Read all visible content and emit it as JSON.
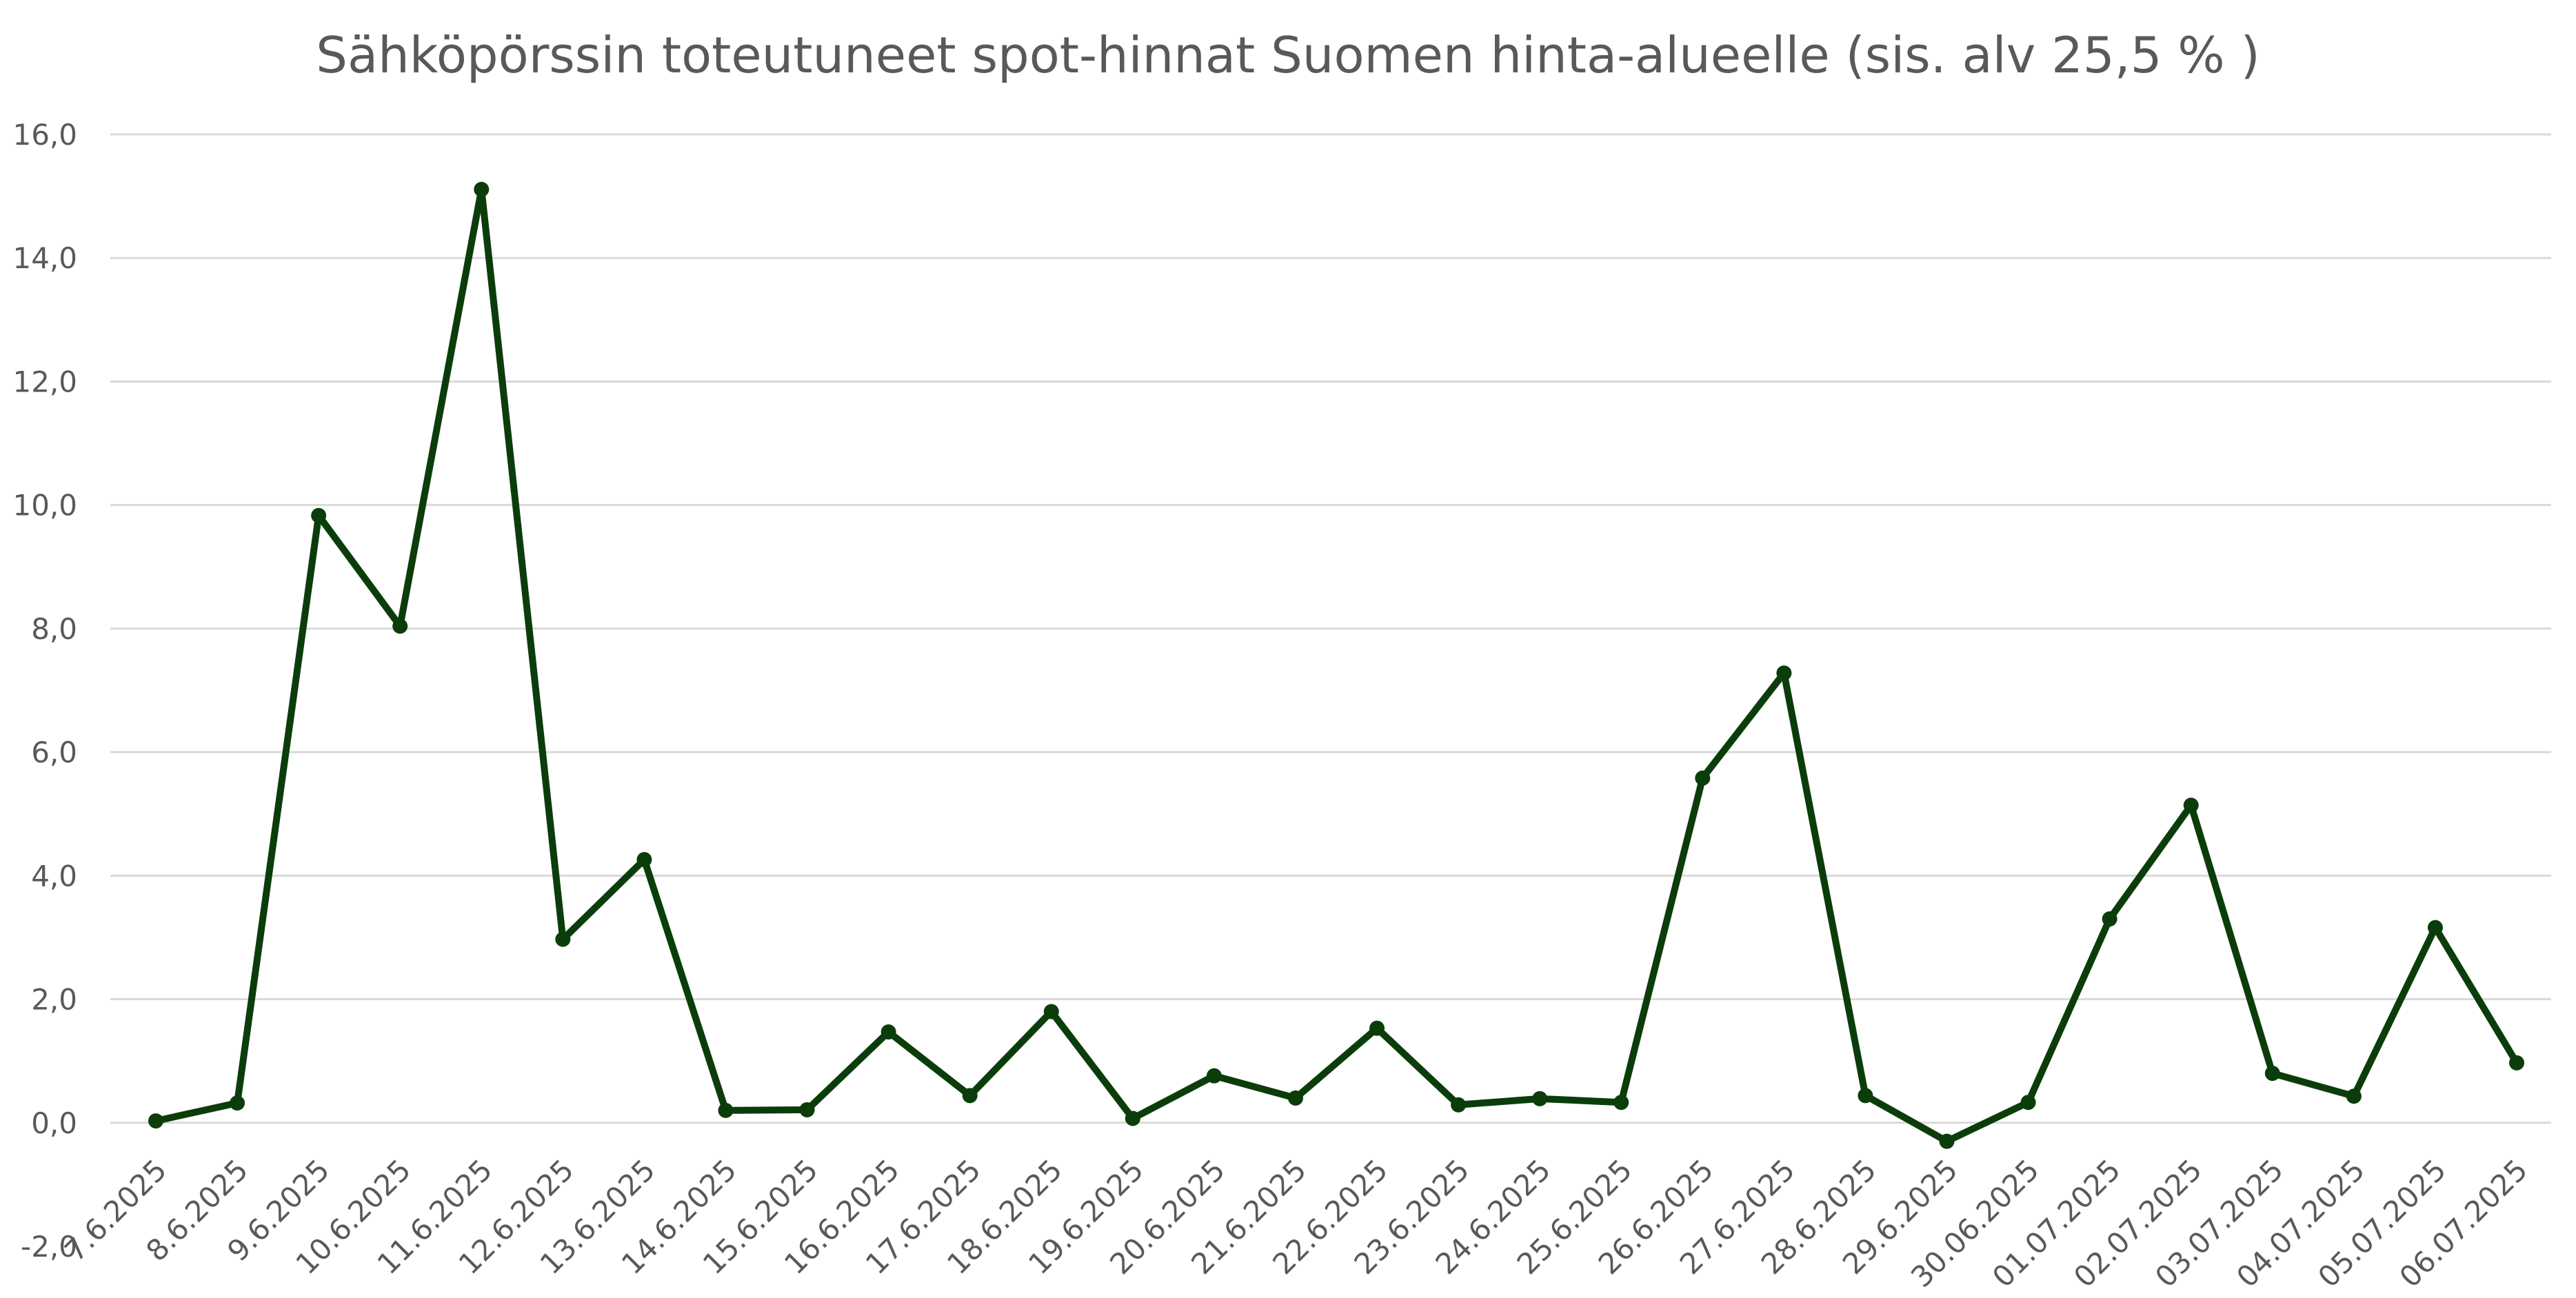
{
  "chart_data": {
    "type": "line",
    "title": "Sähköpörssin toteutuneet spot-hinnat Suomen hinta-alueelle (sis. alv 25,5 % )",
    "xlabel": "",
    "ylabel": "",
    "ylim": [
      -2.0,
      16.0
    ],
    "yticks": [
      "-2,0",
      "0,0",
      "2,0",
      "4,0",
      "6,0",
      "8,0",
      "10,0",
      "12,0",
      "14,0",
      "16,0"
    ],
    "grid": true,
    "legend": "none",
    "line_color": "#0b3d0b",
    "categories": [
      "7.6.2025",
      "8.6.2025",
      "9.6.2025",
      "10.6.2025",
      "11.6.2025",
      "12.6.2025",
      "13.6.2025",
      "14.6.2025",
      "15.6.2025",
      "16.6.2025",
      "17.6.2025",
      "18.6.2025",
      "19.6.2025",
      "20.6.2025",
      "21.6.2025",
      "22.6.2025",
      "23.6.2025",
      "24.6.2025",
      "25.6.2025",
      "26.6.2025",
      "27.6.2025",
      "28.6.2025",
      "29.6.2025",
      "30.06.2025",
      "01.07.2025",
      "02.07.2025",
      "03.07.2025",
      "04.07.2025",
      "05.07.2025",
      "06.07.2025"
    ],
    "series": [
      {
        "values": [
          0.03,
          0.32,
          9.83,
          8.04,
          15.11,
          2.97,
          4.26,
          0.2,
          0.21,
          1.47,
          0.44,
          1.8,
          0.07,
          0.76,
          0.4,
          1.53,
          0.29,
          0.39,
          0.33,
          5.58,
          7.28,
          0.44,
          -0.3,
          0.33,
          3.3,
          5.14,
          0.8,
          0.43,
          3.16,
          0.97
        ]
      }
    ]
  }
}
